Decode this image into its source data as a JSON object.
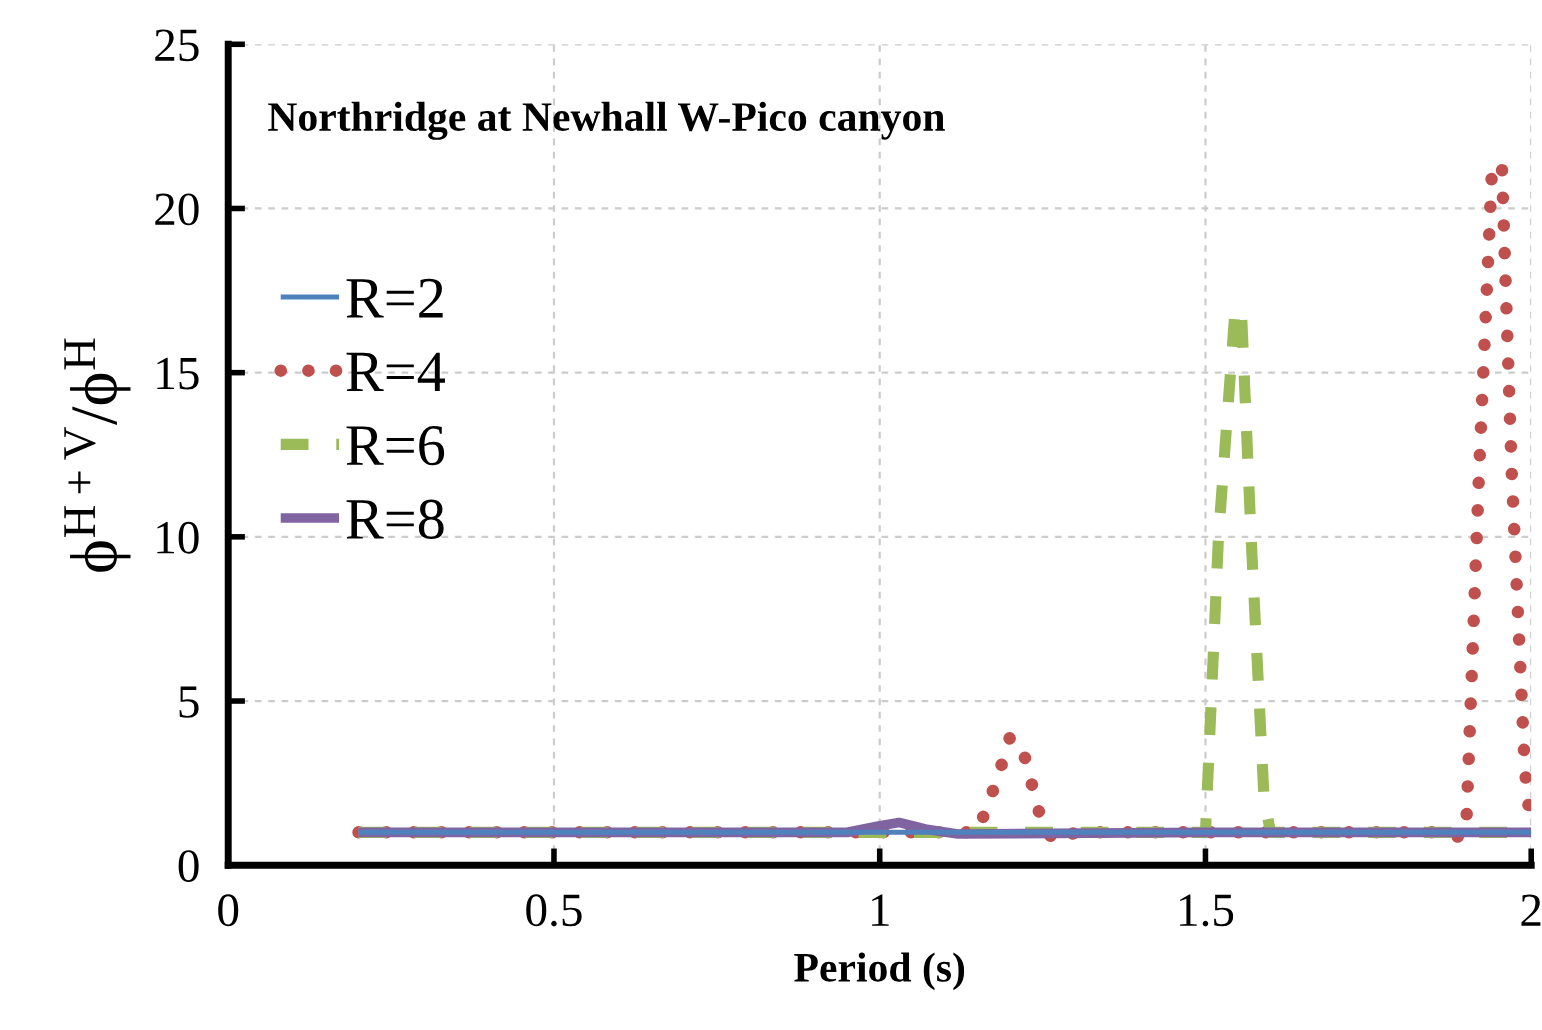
{
  "chart_data": {
    "type": "line",
    "title": "Northridge at Newhall W-Pico canyon",
    "xlabel": "Period (s)",
    "ylabel": "ϕ$^{H+V}$/ϕ$^{H}$",
    "xlim": [
      0,
      2
    ],
    "xticks": [
      0,
      0.5,
      1,
      1.5,
      2
    ],
    "ylim": [
      0,
      25
    ],
    "yticks": [
      0,
      5,
      10,
      15,
      20,
      25
    ],
    "grid": true,
    "legend": "left",
    "series": [
      {
        "name": "R=2",
        "color": "#4f81bd",
        "line_style": "solid",
        "x": [
          0.2,
          0.5,
          1.0,
          1.5,
          2.0
        ],
        "values": [
          1,
          1,
          1,
          1,
          1
        ]
      },
      {
        "name": "R=4",
        "color": "#c0504d",
        "line_style": "dotted",
        "x": [
          0.2,
          1.0,
          1.15,
          1.18,
          1.2,
          1.22,
          1.25,
          1.27,
          1.3,
          1.85,
          1.88,
          1.9,
          1.92,
          1.94,
          1.955,
          1.97,
          1.99,
          2.0
        ],
        "values": [
          1,
          1,
          1,
          2.6,
          3.9,
          3.5,
          1.2,
          0.7,
          1,
          1,
          0.8,
          1,
          12,
          21.3,
          21.3,
          12,
          3,
          1
        ]
      },
      {
        "name": "R=6",
        "color": "#9bbb59",
        "line_style": "dashed",
        "x": [
          0.2,
          1.0,
          1.5,
          1.52,
          1.545,
          1.555,
          1.57,
          1.59,
          1.6,
          2.0
        ],
        "values": [
          1,
          1,
          1,
          10,
          16.8,
          17,
          10,
          2,
          1,
          1
        ]
      },
      {
        "name": "R=8",
        "color": "#8064a2",
        "line_style": "solid",
        "x": [
          0.2,
          0.95,
          1.0,
          1.03,
          1.07,
          1.12,
          1.5,
          2.0
        ],
        "values": [
          1,
          1,
          1.2,
          1.3,
          1.1,
          0.95,
          1,
          1
        ]
      }
    ]
  }
}
